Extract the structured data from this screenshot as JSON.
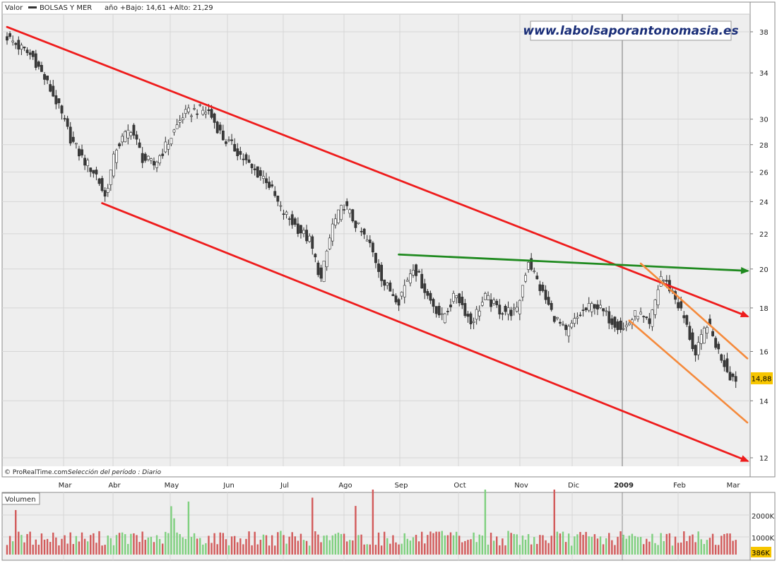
{
  "header": {
    "label": "Valor",
    "symbol": "BOLSAS Y MER",
    "range_text": "año +Bajo: 14,61 +Alto: 21,29"
  },
  "watermark": "www.labolsaporantonomasia.es",
  "footer": {
    "credit": "© ProRealTime.com",
    "period": "Selección del período : Diario"
  },
  "volume_panel": {
    "title": "Volumen",
    "tick_labels": [
      "2000K",
      "1000K"
    ],
    "last_value_label": "386K"
  },
  "colors": {
    "up": "#7fd07f",
    "down": "#d25a5a",
    "channel": "#ee1c1c",
    "resistance": "#1f8a1f",
    "short_channel": "#f58a3c",
    "price_bg": "#eeeeee",
    "last_badge": "#f7c600"
  },
  "chart_data": {
    "type": "candlestick",
    "title": "BOLSAS Y MER",
    "scale": "log",
    "ylim": [
      11.4,
      39.5
    ],
    "y_ticks": [
      38,
      34,
      30,
      28,
      26,
      24,
      22,
      20,
      18,
      16,
      14,
      12
    ],
    "months": [
      "Mar",
      "Abr",
      "May",
      "Jun",
      "Jul",
      "Ago",
      "Sep",
      "Oct",
      "Nov",
      "Dic",
      "2009",
      "Feb",
      "Mar"
    ],
    "last_price": 14.88,
    "last_price_label": "14,88",
    "price_anchors": [
      [
        0,
        37.5
      ],
      [
        4,
        36.5
      ],
      [
        9,
        35.5
      ],
      [
        14,
        33.0
      ],
      [
        17,
        31.5
      ],
      [
        22,
        28.5
      ],
      [
        26,
        27.0
      ],
      [
        31,
        25.8
      ],
      [
        34,
        24.3
      ],
      [
        38,
        27.8
      ],
      [
        43,
        29.3
      ],
      [
        47,
        27.0
      ],
      [
        51,
        26.5
      ],
      [
        56,
        28.2
      ],
      [
        61,
        30.3
      ],
      [
        66,
        30.8
      ],
      [
        70,
        30.6
      ],
      [
        75,
        28.5
      ],
      [
        80,
        27.5
      ],
      [
        85,
        26.2
      ],
      [
        90,
        25.5
      ],
      [
        95,
        23.5
      ],
      [
        100,
        22.5
      ],
      [
        105,
        21.6
      ],
      [
        109,
        19.4
      ],
      [
        113,
        22.5
      ],
      [
        117,
        23.8
      ],
      [
        121,
        22.6
      ],
      [
        126,
        21.3
      ],
      [
        131,
        19.2
      ],
      [
        136,
        18.4
      ],
      [
        141,
        20.2
      ],
      [
        146,
        18.6
      ],
      [
        151,
        17.5
      ],
      [
        156,
        18.7
      ],
      [
        161,
        17.3
      ],
      [
        166,
        18.5
      ],
      [
        171,
        17.9
      ],
      [
        177,
        17.8
      ],
      [
        181,
        20.5
      ],
      [
        185,
        19.0
      ],
      [
        189,
        17.8
      ],
      [
        194,
        16.8
      ],
      [
        199,
        17.7
      ],
      [
        204,
        18.2
      ],
      [
        209,
        17.5
      ],
      [
        214,
        17.0
      ],
      [
        219,
        17.8
      ],
      [
        223,
        17.1
      ],
      [
        227,
        19.6
      ],
      [
        231,
        18.8
      ],
      [
        235,
        17.5
      ],
      [
        239,
        15.8
      ],
      [
        243,
        17.3
      ],
      [
        247,
        16.0
      ],
      [
        251,
        15.0
      ],
      [
        253,
        14.88
      ]
    ],
    "lines": [
      {
        "name": "channel_upper",
        "style": "red",
        "points": [
          [
            0,
            38.5
          ],
          [
            257,
            17.6
          ]
        ]
      },
      {
        "name": "channel_lower",
        "style": "red",
        "points": [
          [
            33,
            23.9
          ],
          [
            257,
            11.9
          ]
        ]
      },
      {
        "name": "resistance",
        "style": "green",
        "points": [
          [
            136,
            20.8
          ],
          [
            257,
            19.9
          ]
        ]
      },
      {
        "name": "short_upper",
        "style": "orange",
        "points": [
          [
            220,
            20.3
          ],
          [
            257,
            15.7
          ]
        ]
      },
      {
        "name": "short_lower",
        "style": "orange",
        "points": [
          [
            216,
            17.4
          ],
          [
            257,
            13.2
          ]
        ]
      }
    ]
  }
}
